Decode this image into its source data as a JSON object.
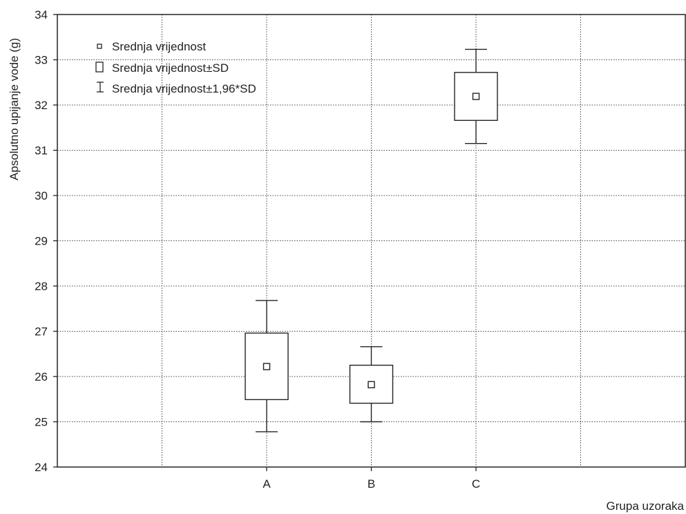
{
  "chart_data": {
    "type": "box",
    "title": "",
    "xlabel": "Grupa uzoraka",
    "ylabel": "Apsolutno upijanje vode (g)",
    "ylim": [
      24,
      34
    ],
    "yticks": [
      "24",
      "25",
      "26",
      "27",
      "28",
      "29",
      "30",
      "31",
      "32",
      "33",
      "34"
    ],
    "categories": [
      "A",
      "B",
      "C"
    ],
    "x_gridlines": 6,
    "grid": true,
    "legend_position": "top-left",
    "legend": {
      "mean": "Srednja vrijednost",
      "sd": "Srednja vrijednost±SD",
      "ci": "Srednja vrijednost±1,96*SD"
    },
    "series": [
      {
        "category": "A",
        "mean": 26.22,
        "sd_low": 25.49,
        "sd_high": 26.96,
        "ci_low": 24.78,
        "ci_high": 27.68
      },
      {
        "category": "B",
        "mean": 25.82,
        "sd_low": 25.41,
        "sd_high": 26.25,
        "ci_low": 25.0,
        "ci_high": 26.66
      },
      {
        "category": "C",
        "mean": 32.19,
        "sd_low": 31.66,
        "sd_high": 32.72,
        "ci_low": 31.15,
        "ci_high": 33.23
      }
    ]
  }
}
